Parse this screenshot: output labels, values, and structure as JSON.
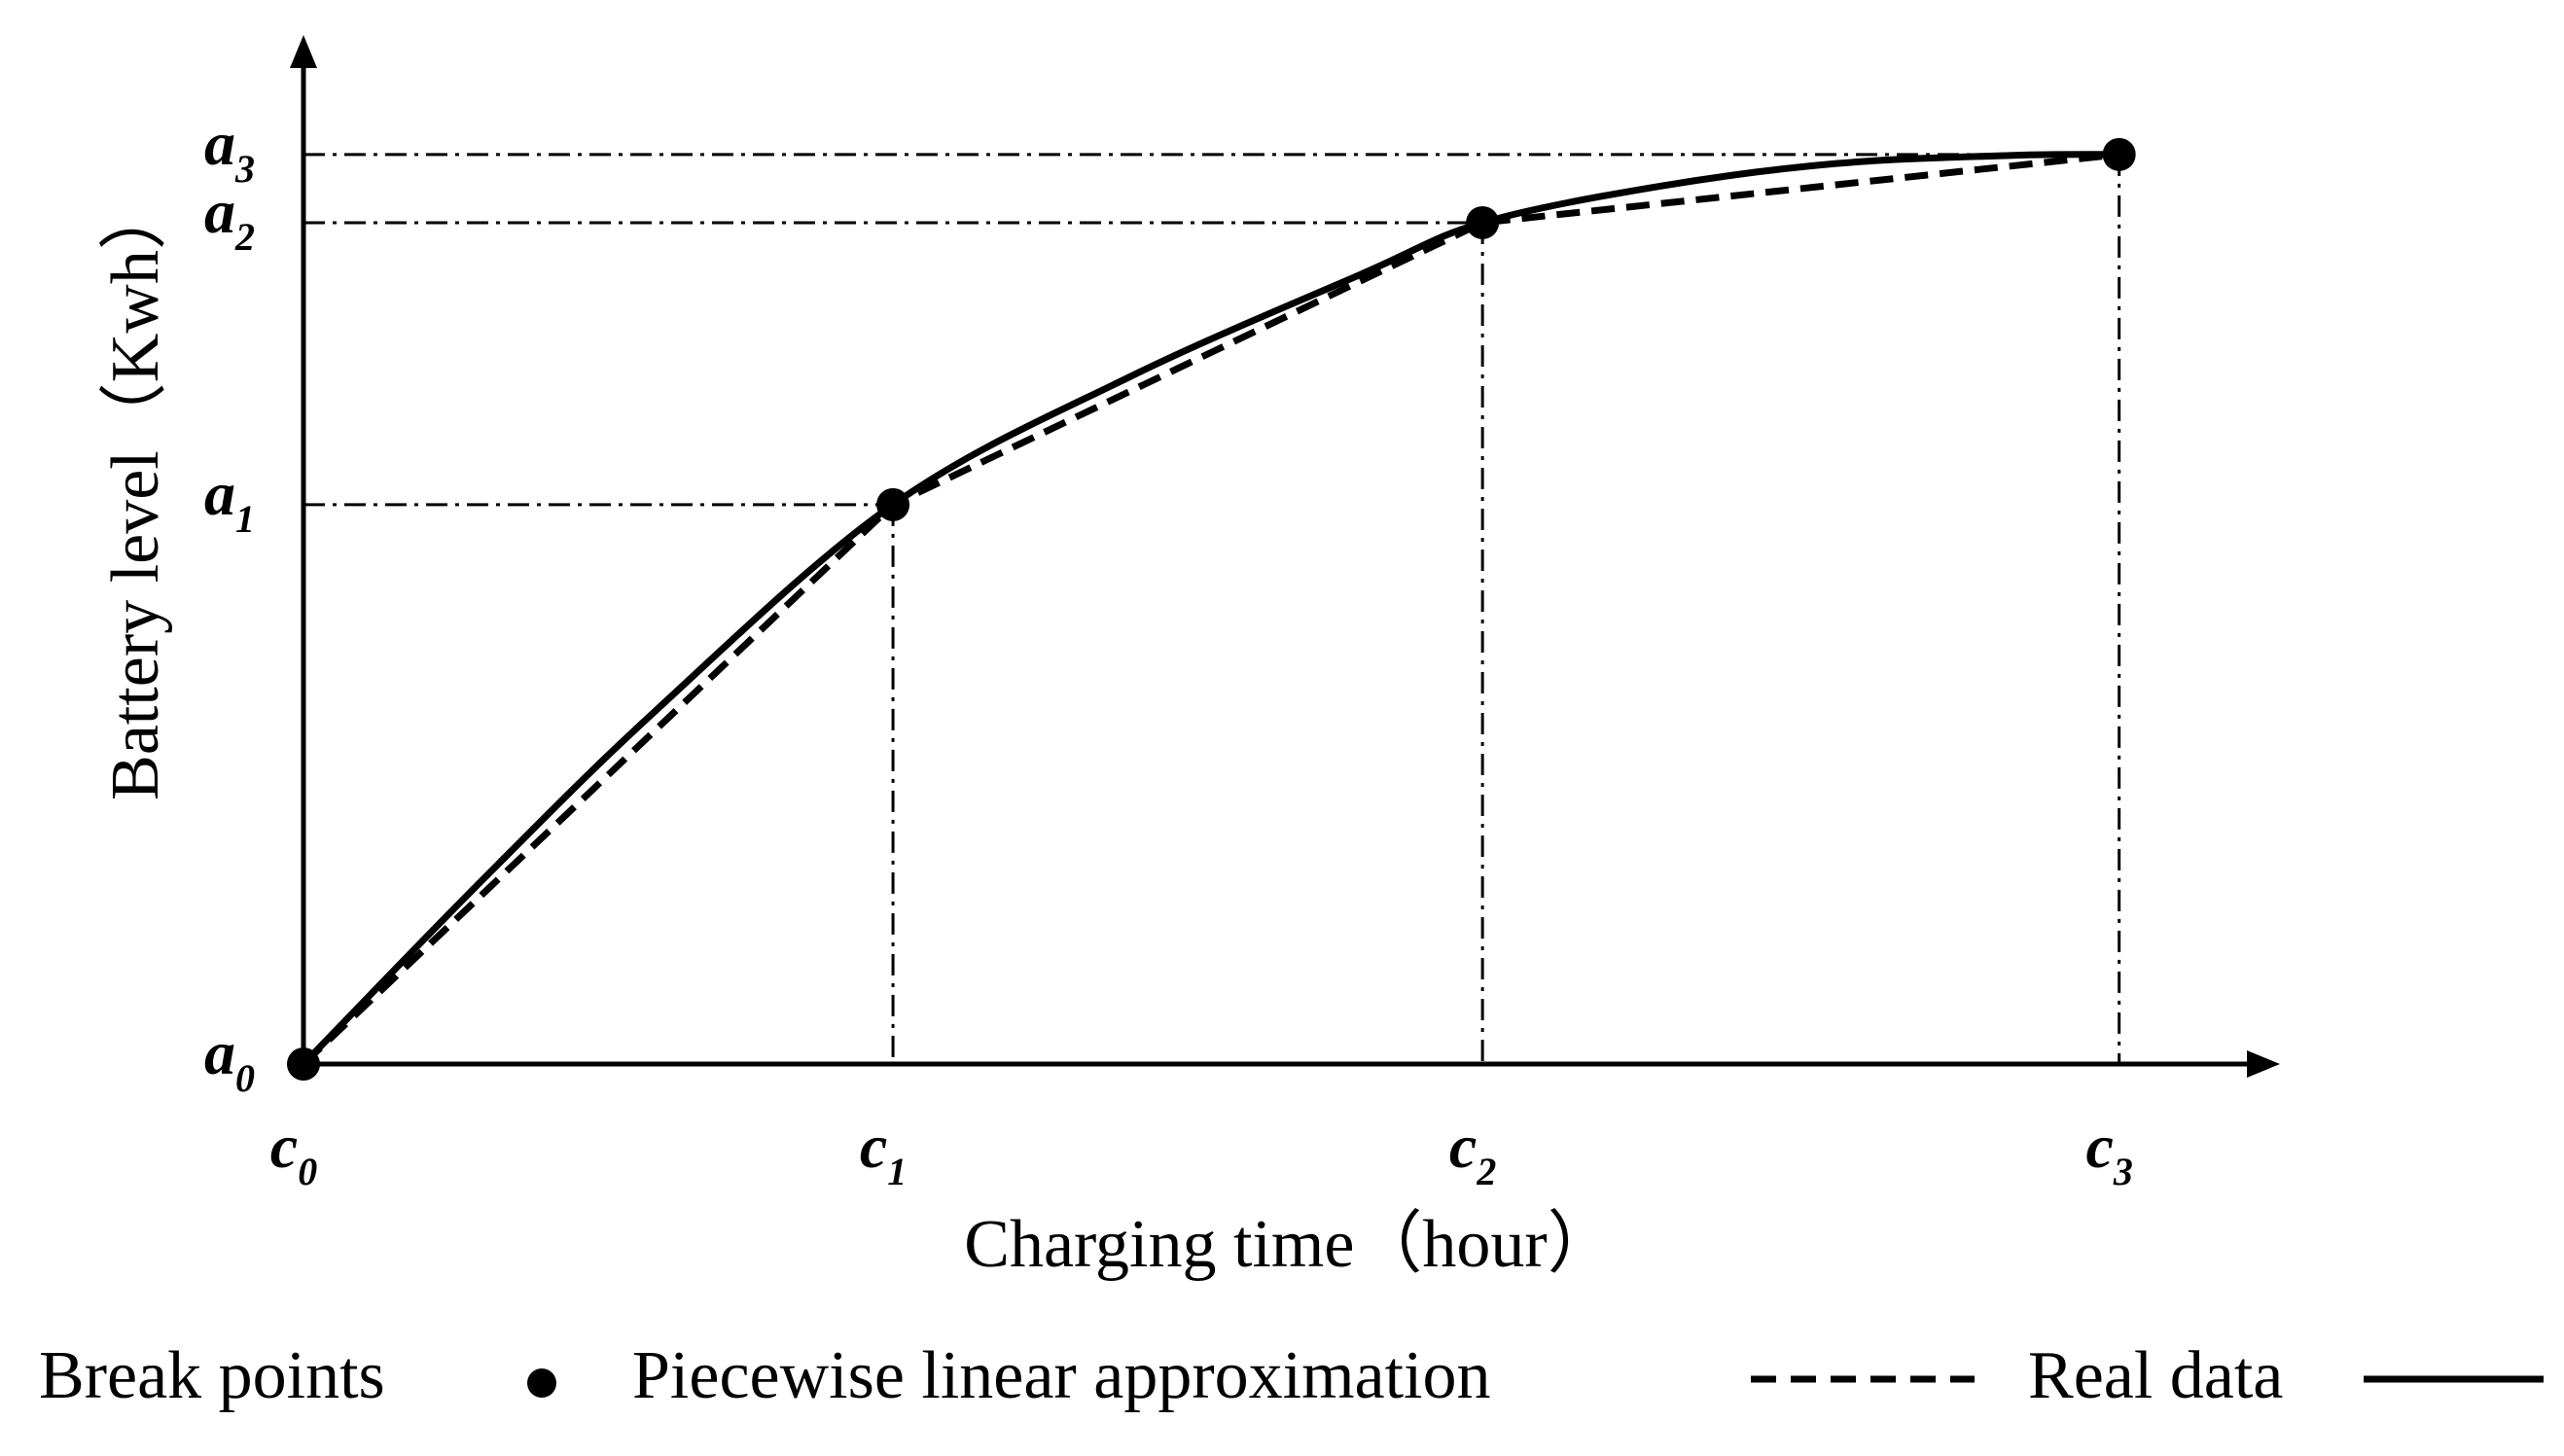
{
  "chart_data": {
    "type": "line",
    "title": "",
    "xlabel": "Charging time（hour）",
    "ylabel": "Battery level（Kwh）",
    "x_ticks": [
      {
        "base": "c",
        "sub": "0",
        "value": 0
      },
      {
        "base": "c",
        "sub": "1",
        "value": 1
      },
      {
        "base": "c",
        "sub": "2",
        "value": 2
      },
      {
        "base": "c",
        "sub": "3",
        "value": 3.08
      }
    ],
    "y_ticks": [
      {
        "base": "a",
        "sub": "0",
        "value": 0
      },
      {
        "base": "a",
        "sub": "1",
        "value": 0.615
      },
      {
        "base": "a",
        "sub": "2",
        "value": 0.925
      },
      {
        "base": "a",
        "sub": "3",
        "value": 1.0
      }
    ],
    "xlim": [
      0,
      3.3
    ],
    "ylim": [
      0,
      1.08
    ],
    "grid": false,
    "series": [
      {
        "name": "Real data",
        "style": "solid",
        "x": [
          0,
          0.3,
          0.6,
          1.0,
          1.4,
          1.8,
          2.0,
          2.3,
          2.6,
          2.9,
          3.08
        ],
        "values": [
          0,
          0.2,
          0.39,
          0.615,
          0.755,
          0.87,
          0.925,
          0.965,
          0.99,
          0.999,
          1.0
        ]
      },
      {
        "name": "Piecewise linear approximation",
        "style": "dashed",
        "x": [
          0,
          1.0,
          2.0,
          3.08
        ],
        "values": [
          0,
          0.615,
          0.925,
          1.0
        ]
      },
      {
        "name": "Break points",
        "style": "markers",
        "x": [
          0,
          1.0,
          2.0,
          3.08
        ],
        "values": [
          0,
          0.615,
          0.925,
          1.0
        ]
      }
    ],
    "legend": {
      "placement": "bottom",
      "items": [
        {
          "label": "Break points",
          "marker": "dot"
        },
        {
          "label": "Piecewise linear approximation",
          "marker": "dashed-line"
        },
        {
          "label": "Real data",
          "marker": "solid-line"
        }
      ]
    },
    "colors": {
      "line": "#000000",
      "background": "#ffffff"
    }
  }
}
